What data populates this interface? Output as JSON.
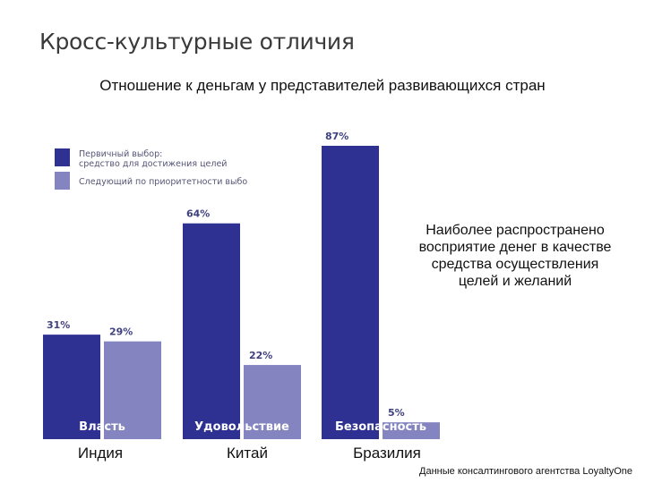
{
  "slide": {
    "title": "Кросс-культурные отличия",
    "subtitle": "Отношение к деньгам у представителей развивающихся стран",
    "annotation": "Наиболее распространено восприятие денег в качестве средства осуществления целей и желаний",
    "source": "Данные консалтингового агентства LoyaltyOne"
  },
  "colors": {
    "primary": "#2e3192",
    "secondary": "#8484c0",
    "category_label": "#ffffff"
  },
  "chart_data": {
    "type": "bar",
    "groups": [
      "Индия",
      "Китай",
      "Бразилия"
    ],
    "series": [
      {
        "name": "Первичный выбор: средство для достижения целей",
        "values": [
          31,
          64,
          87
        ]
      },
      {
        "name": "Следующий по приоритетности выбо",
        "values": [
          29,
          22,
          5
        ]
      }
    ],
    "value_labels": [
      [
        "31%",
        "29%"
      ],
      [
        "64%",
        "22%"
      ],
      [
        "87%",
        "5%"
      ]
    ],
    "category_labels": [
      "Власть",
      "Удовольствие",
      "Безопасность"
    ],
    "ylim": [
      0,
      100
    ],
    "grid": false,
    "legend_position": "top-left"
  }
}
